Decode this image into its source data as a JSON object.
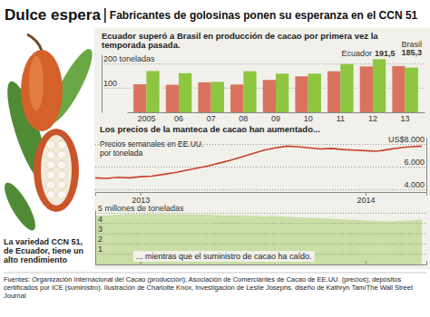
{
  "header": {
    "title": "Dulce espera",
    "subtitle": "Fabricantes de golosinas ponen su esperanza en el CCN 51"
  },
  "caption": "La variedad CCN 51, de Ecuador, tiene un alto rendimiento",
  "source": "Fuentes: Organización Internacional del Cacao (producción); Asociación de Comerciantes de Cacao de EE.UU. (precios); depósitos certificados por ICE (suministro). Ilustración de Charlotte Knox, investigación de Leslie Josephs, diseño de Kathryn Tam/The Wall Street Journal",
  "chart_data": [
    {
      "type": "bar",
      "title": "Ecuador superó a Brasil en producción de cacao por primera vez la temporada pasada.",
      "categories": [
        "2005",
        "06",
        "07",
        "08",
        "09",
        "10",
        "11",
        "12",
        "13"
      ],
      "series": [
        {
          "name": "Ecuador",
          "color": "#d9735f",
          "values": [
            116,
            114,
            124,
            115,
            134,
            149,
            170,
            190,
            191.5
          ],
          "value_labels": [
            null,
            null,
            null,
            null,
            null,
            null,
            null,
            null,
            "191,5"
          ]
        },
        {
          "name": "Brasil",
          "color": "#8dc63f",
          "values": [
            171,
            162,
            126,
            170,
            160,
            160,
            200,
            220,
            185.3
          ],
          "value_labels": [
            null,
            null,
            null,
            null,
            null,
            null,
            null,
            null,
            "185,3"
          ]
        }
      ],
      "ylim": [
        0,
        240
      ],
      "yticks": [
        100,
        {
          "value": 200,
          "label": "200 toneladas"
        }
      ],
      "grid": true
    },
    {
      "type": "line",
      "title": "Los precios de la manteca de cacao han aumentado...",
      "subtitle": "Precios semanales en EE.UU. por tonelada",
      "x": [
        2012.8,
        2012.85,
        2012.9,
        2012.95,
        2013,
        2013.05,
        2013.1,
        2013.15,
        2013.2,
        2013.25,
        2013.3,
        2013.35,
        2013.4,
        2013.45,
        2013.5,
        2013.55,
        2013.6,
        2013.65,
        2013.7,
        2013.75,
        2013.8,
        2013.85,
        2013.9,
        2013.95,
        2014,
        2014.05,
        2014.1,
        2014.15,
        2014.2,
        2014.25
      ],
      "values": [
        5050,
        5000,
        5100,
        5050,
        5150,
        5200,
        5350,
        5500,
        5700,
        5900,
        6100,
        6350,
        6600,
        6900,
        7200,
        7500,
        7700,
        7850,
        7800,
        7700,
        7600,
        7650,
        7550,
        7500,
        7450,
        7400,
        7550,
        7700,
        7800,
        7850
      ],
      "color": "#c8402a",
      "xlim": [
        2012.8,
        2014.27
      ],
      "xticks": [
        2013,
        2014
      ],
      "ylim": [
        3800,
        8600
      ],
      "yticks": [
        {
          "value": 4000,
          "label": "4.000"
        },
        {
          "value": 6000,
          "label": "6.000"
        },
        {
          "value": 8000,
          "label": "US$8.000"
        }
      ],
      "grid": true
    },
    {
      "type": "area",
      "title": "... mientras que el suministro de cacao ha caído.",
      "x": [
        2012.8,
        2012.85,
        2012.9,
        2012.95,
        2013,
        2013.05,
        2013.1,
        2013.15,
        2013.2,
        2013.25,
        2013.3,
        2013.35,
        2013.4,
        2013.45,
        2013.5,
        2013.55,
        2013.6,
        2013.65,
        2013.7,
        2013.75,
        2013.8,
        2013.85,
        2013.9,
        2013.95,
        2014,
        2014.05,
        2014.1,
        2014.15,
        2014.2,
        2014.25
      ],
      "values": [
        4.75,
        4.8,
        4.85,
        4.9,
        4.9,
        4.92,
        4.9,
        4.9,
        4.88,
        4.85,
        4.85,
        4.8,
        4.8,
        4.78,
        4.75,
        4.7,
        4.7,
        4.65,
        4.6,
        4.55,
        4.5,
        4.45,
        4.4,
        4.35,
        4.3,
        4.25,
        4.2,
        4.25,
        4.3,
        4.4
      ],
      "color": "#c9dfa6",
      "xlim": [
        2012.8,
        2014.27
      ],
      "xticks": [
        2013,
        2014
      ],
      "ylim": [
        0,
        5.3
      ],
      "yticks": [
        1,
        2,
        3,
        4,
        {
          "value": 5,
          "label": "5 millones de toneladas"
        }
      ],
      "tick_labels": "y",
      "grid": true
    }
  ]
}
